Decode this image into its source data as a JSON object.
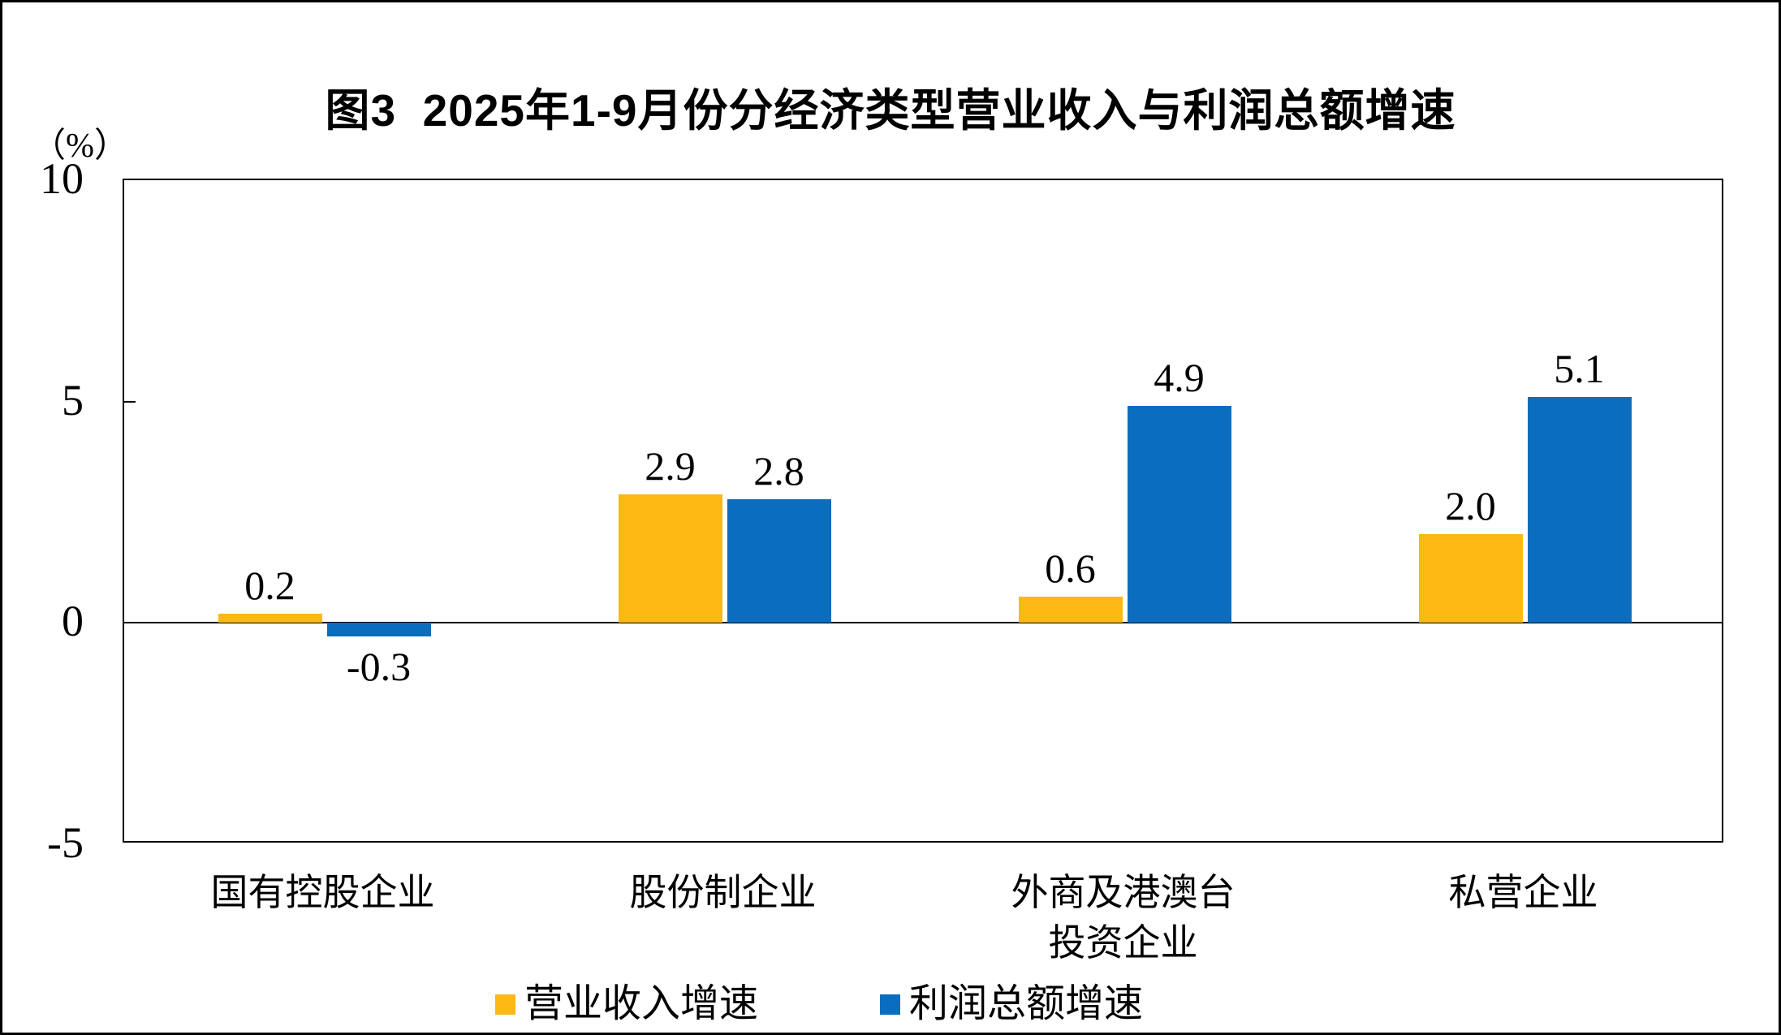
{
  "chart_data": {
    "type": "bar",
    "title": "图3  2025年1-9月份分经济类型营业收入与利润总额增速",
    "ylabel": "（%）",
    "categories": [
      "国有控股企业",
      "股份制企业",
      "外商及港澳台投资企业",
      "私营企业"
    ],
    "category_lines": [
      [
        "国有控股企业"
      ],
      [
        "股份制企业"
      ],
      [
        "外商及港澳台",
        "投资企业"
      ],
      [
        "私营企业"
      ]
    ],
    "series": [
      {
        "name": "营业收入增速",
        "color": "#FCB813",
        "values": [
          0.2,
          2.9,
          0.6,
          2.0
        ],
        "labels": [
          "0.2",
          "2.9",
          "0.6",
          "2.0"
        ]
      },
      {
        "name": "利润总额增速",
        "color": "#0B6DBD",
        "values": [
          -0.3,
          2.8,
          4.9,
          5.1
        ],
        "labels": [
          "-0.3",
          "2.8",
          "4.9",
          "5.1"
        ]
      }
    ],
    "ylim": [
      -5,
      10
    ],
    "yticks": [
      10,
      5,
      0,
      -5
    ],
    "ytick_labels": [
      "10",
      "5",
      "0",
      "-5"
    ],
    "grid": false,
    "zero_line": true,
    "legend_position": "bottom",
    "axis_color": "#000000"
  }
}
